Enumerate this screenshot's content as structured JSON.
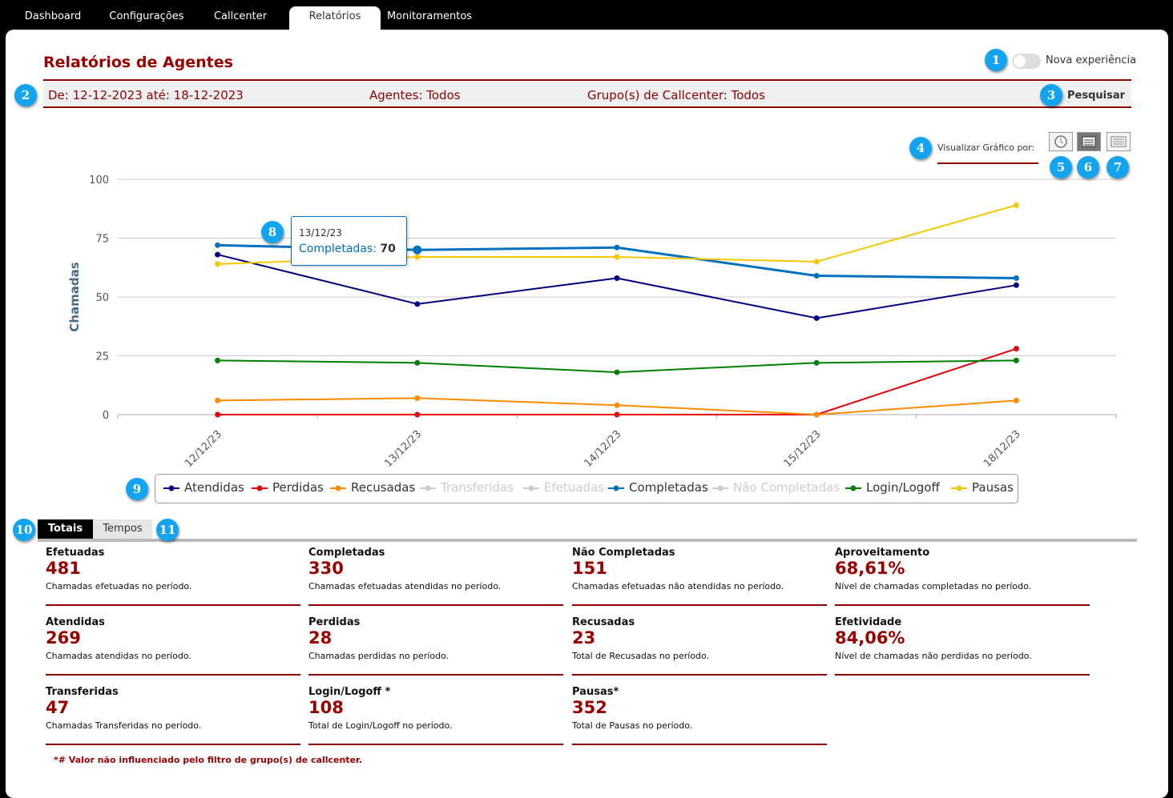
{
  "nav": {
    "tabs": [
      "Dashboard",
      "Configurações",
      "Callcenter",
      "Relatórios",
      "Monitoramentos"
    ],
    "active": 3
  },
  "header": {
    "title": "Relatórios de Agentes",
    "toggle_label": "Nova experiência"
  },
  "filters": {
    "period": "De: 12-12-2023 até: 18-12-2023",
    "agents": "Agentes: Todos",
    "groups": "Grupo(s) de Callcenter: Todos",
    "search_button": "Pesquisar"
  },
  "view_by": {
    "label": "Visualizar Gráfico por:"
  },
  "chart_data": {
    "type": "line",
    "y_label": "Chamadas",
    "categories": [
      "12/12/23",
      "13/12/23",
      "14/12/23",
      "15/12/23",
      "18/12/23"
    ],
    "ylim": [
      0,
      100
    ],
    "yticks": [
      0,
      25,
      50,
      75,
      100
    ],
    "grid": true,
    "series": [
      {
        "name": "Atendidas",
        "color": "#000080",
        "values": [
          68,
          47,
          58,
          41,
          55
        ]
      },
      {
        "name": "Perdidas",
        "color": "#e8000b",
        "values": [
          0,
          0,
          0,
          0,
          28
        ]
      },
      {
        "name": "Recusadas",
        "color": "#ff8c00",
        "values": [
          6,
          7,
          4,
          0,
          6
        ]
      },
      {
        "name": "Transferidas",
        "color": "#cccccc",
        "hidden": true
      },
      {
        "name": "Efetuadas",
        "color": "#cccccc",
        "hidden": true
      },
      {
        "name": "Completadas",
        "color": "#0070c0",
        "values": [
          72,
          70,
          71,
          59,
          58
        ]
      },
      {
        "name": "Não Completadas",
        "color": "#cccccc",
        "hidden": true
      },
      {
        "name": "Login/Logoff",
        "color": "#008000",
        "values": [
          23,
          22,
          18,
          22,
          23
        ]
      },
      {
        "name": "Pausas",
        "color": "#f5c800",
        "values": [
          64,
          67,
          67,
          65,
          89
        ]
      }
    ],
    "tooltip": {
      "date": "13/12/23",
      "label": "Completadas:",
      "value": 70
    }
  },
  "tabs": [
    "Totais",
    "Tempos"
  ],
  "totals": [
    {
      "title": "Efetuadas",
      "value": 481,
      "description": "Chamadas efetuadas no período."
    },
    {
      "title": "Completadas",
      "value": 330,
      "description": "Chamadas efetuadas atendidas no período."
    },
    {
      "title": "Não Completadas",
      "value": 151,
      "description": "Chamadas efetuadas não atendidas no período."
    },
    {
      "title": "Aproveitamento",
      "value": "68,61%",
      "description": "Nível de chamadas completadas no período."
    },
    {
      "title": "Atendidas",
      "value": 269,
      "description": "Chamadas atendidas no período."
    },
    {
      "title": "Perdidas",
      "value": 28,
      "description": "Chamadas perdidas no período."
    },
    {
      "title": "Recusadas",
      "value": 23,
      "description": "Total de Recusadas no período."
    },
    {
      "title": "Efetividade",
      "value": "84,06%",
      "description": "Nível de chamadas não perdidas no período."
    },
    {
      "title": "Transferidas",
      "value": 47,
      "description": "Chamadas Transferidas no período."
    },
    {
      "title": "Login/Logoff *",
      "value": 108,
      "description": "Total de Login/Logoff no período."
    },
    {
      "title": "Pausas*",
      "value": 352,
      "description": "Total de Pausas no período."
    }
  ],
  "footnote": "*# Valor não influenciado pelo filtro de grupo(s) de callcenter.",
  "callouts": [
    1,
    2,
    3,
    4,
    5,
    6,
    7,
    8,
    9,
    10,
    11
  ]
}
